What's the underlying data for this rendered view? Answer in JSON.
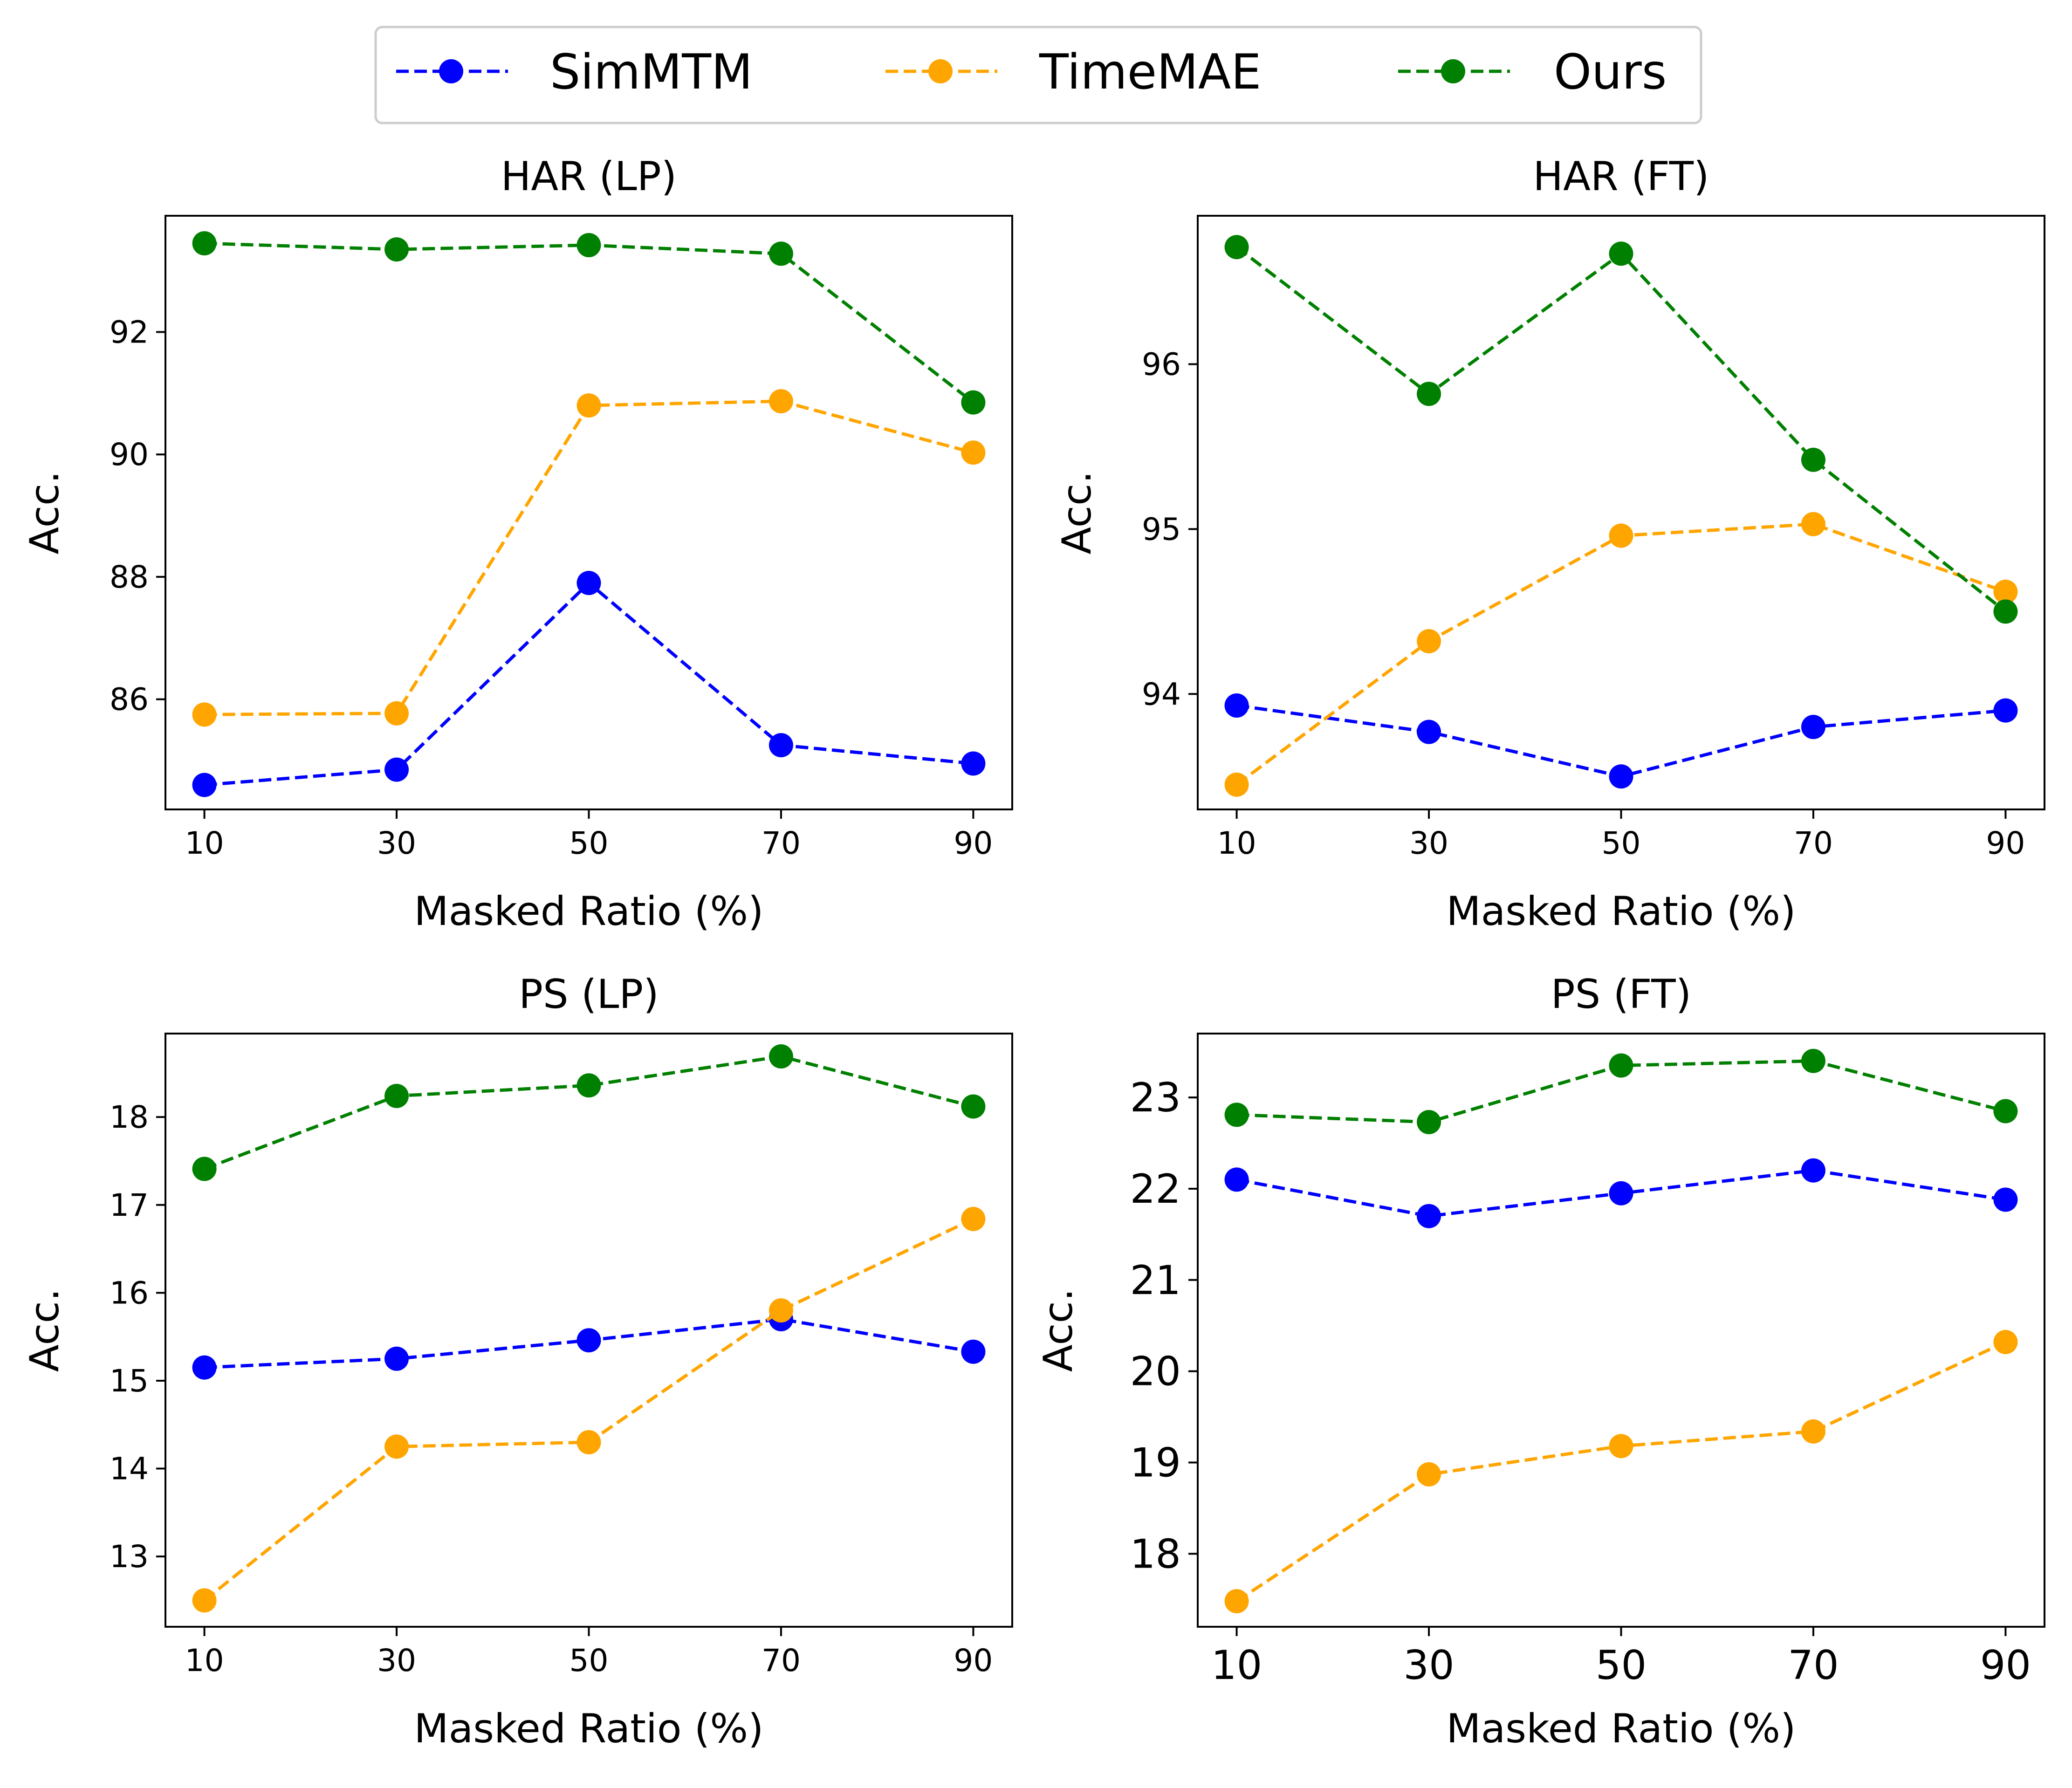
{
  "legend": [
    "SimMTM",
    "TimeMAE",
    "Ours"
  ],
  "colors": {
    "SimMTM": "#0000ff",
    "TimeMAE": "#ffa500",
    "Ours": "#008000"
  },
  "chart_data": [
    {
      "type": "line",
      "title": "HAR (LP)",
      "xlabel": "Masked Ratio (%)",
      "ylabel": "Acc.",
      "x": [
        10,
        30,
        50,
        70,
        90
      ],
      "xticks": [
        "10",
        "30",
        "50",
        "70",
        "90"
      ],
      "yticks": [
        86,
        88,
        90,
        92
      ],
      "ytick_labels": [
        "86",
        "88",
        "90",
        "92"
      ],
      "ylim": [
        84.2,
        93.9
      ],
      "series": [
        {
          "name": "SimMTM",
          "values": [
            84.6,
            84.85,
            87.9,
            85.25,
            84.95
          ]
        },
        {
          "name": "TimeMAE",
          "values": [
            85.75,
            85.77,
            90.8,
            90.87,
            90.03
          ]
        },
        {
          "name": "Ours",
          "values": [
            93.45,
            93.35,
            93.42,
            93.28,
            90.85
          ]
        }
      ]
    },
    {
      "type": "line",
      "title": "HAR (FT)",
      "xlabel": "Masked Ratio (%)",
      "ylabel": "Acc.",
      "x": [
        10,
        30,
        50,
        70,
        90
      ],
      "xticks": [
        "10",
        "30",
        "50",
        "70",
        "90"
      ],
      "yticks": [
        94,
        95,
        96
      ],
      "ytick_labels": [
        "94",
        "95",
        "96"
      ],
      "ylim": [
        93.3,
        96.9
      ],
      "series": [
        {
          "name": "SimMTM",
          "values": [
            93.93,
            93.77,
            93.5,
            93.8,
            93.9
          ]
        },
        {
          "name": "TimeMAE",
          "values": [
            93.45,
            94.32,
            94.96,
            95.03,
            94.62
          ]
        },
        {
          "name": "Ours",
          "values": [
            96.71,
            95.82,
            96.67,
            95.42,
            94.5
          ]
        }
      ]
    },
    {
      "type": "line",
      "title": "PS (LP)",
      "xlabel": "Masked Ratio (%)",
      "ylabel": "Acc.",
      "x": [
        10,
        30,
        50,
        70,
        90
      ],
      "xticks": [
        "10",
        "30",
        "50",
        "70",
        "90"
      ],
      "yticks": [
        13,
        14,
        15,
        16,
        17,
        18
      ],
      "ytick_labels": [
        "13",
        "14",
        "15",
        "16",
        "17",
        "18"
      ],
      "ylim": [
        12.2,
        18.95
      ],
      "series": [
        {
          "name": "SimMTM",
          "values": [
            15.15,
            15.25,
            15.46,
            15.7,
            15.33
          ]
        },
        {
          "name": "TimeMAE",
          "values": [
            12.5,
            14.25,
            14.3,
            15.8,
            16.84
          ]
        },
        {
          "name": "Ours",
          "values": [
            17.41,
            18.24,
            18.36,
            18.69,
            18.12
          ]
        }
      ]
    },
    {
      "type": "line",
      "title": "PS (FT)",
      "xlabel": "Masked Ratio (%)",
      "ylabel": "Acc.",
      "x": [
        10,
        30,
        50,
        70,
        90
      ],
      "xticks": [
        "10",
        "30",
        "50",
        "70",
        "90"
      ],
      "yticks": [
        18,
        19,
        20,
        21,
        22,
        23
      ],
      "ytick_labels": [
        "18",
        "19",
        "20",
        "21",
        "22",
        "23"
      ],
      "ylim": [
        17.2,
        23.7
      ],
      "series": [
        {
          "name": "SimMTM",
          "values": [
            22.1,
            21.7,
            21.95,
            22.2,
            21.88
          ]
        },
        {
          "name": "TimeMAE",
          "values": [
            17.48,
            18.87,
            19.18,
            19.34,
            20.32
          ]
        },
        {
          "name": "Ours",
          "values": [
            22.81,
            22.73,
            23.35,
            23.4,
            22.85
          ]
        }
      ]
    }
  ]
}
